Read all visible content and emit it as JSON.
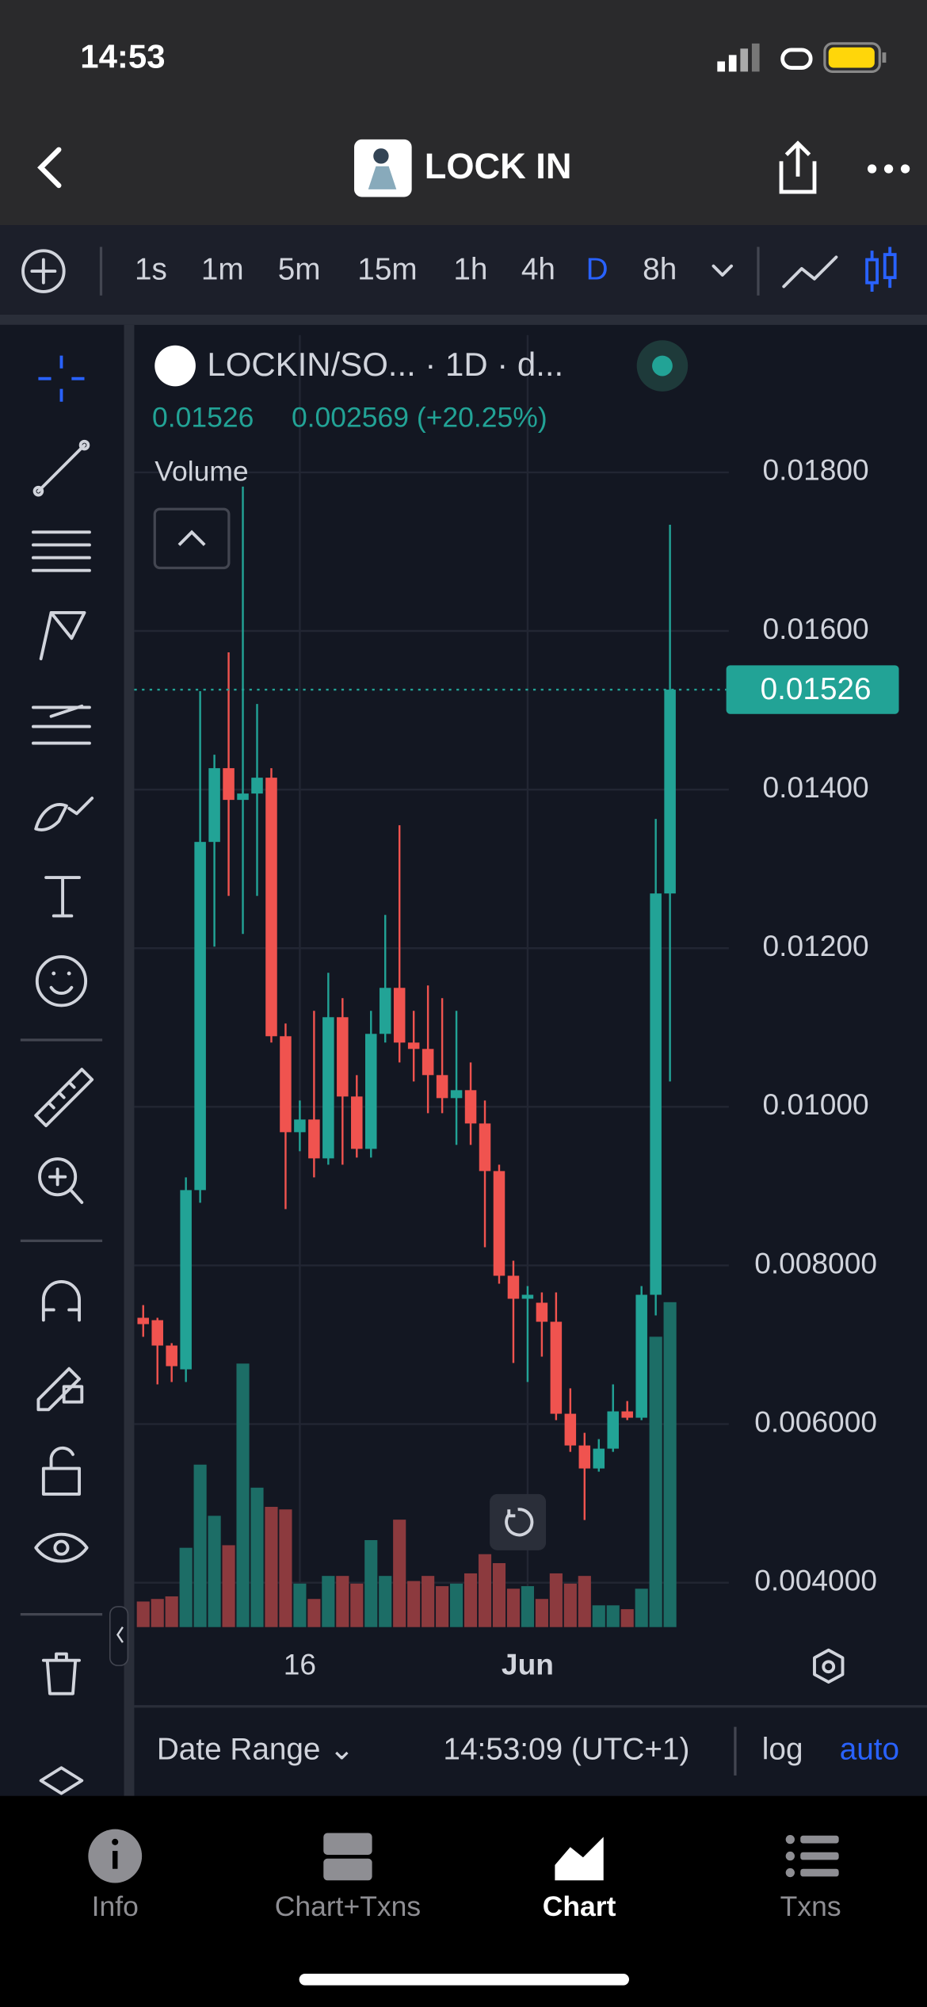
{
  "status_bar": {
    "time": "14:53"
  },
  "header": {
    "title": "LOCK IN"
  },
  "toolbar": {
    "timeframes": [
      "1s",
      "1m",
      "5m",
      "15m",
      "1h",
      "4h",
      "D",
      "8h"
    ],
    "active_timeframe": "D"
  },
  "legend": {
    "symbol": "LOCKIN/SO... · 1D · d...",
    "change": "0.002569 (+20.25%)",
    "volume_label": "Volume"
  },
  "chart_data": {
    "type": "candlestick",
    "categories": [
      null,
      null,
      null,
      null,
      null,
      null,
      null,
      null,
      null,
      null,
      null,
      "16",
      null,
      null,
      null,
      null,
      null,
      null,
      null,
      null,
      null,
      null,
      null,
      null,
      null,
      null,
      null,
      "Jun",
      null,
      null,
      null,
      null,
      null,
      null,
      null,
      null,
      null,
      null
    ],
    "open": [
      0.00734,
      0.00731,
      0.00699,
      0.00669,
      0.00895,
      0.01334,
      0.01427,
      0.01387,
      0.01395,
      0.01415,
      0.01089,
      0.00968,
      0.00984,
      0.00935,
      0.01113,
      0.01013,
      0.00947,
      0.01092,
      0.0115,
      0.01081,
      0.01073,
      0.0104,
      0.01011,
      0.01021,
      0.00979,
      0.00919,
      0.00787,
      0.00758,
      0.00753,
      0.00729,
      0.00613,
      0.00573,
      0.00544,
      0.00569,
      0.00616,
      0.00608,
      0.00763,
      0.01269
    ],
    "high": [
      0.0075,
      0.00734,
      0.00702,
      0.00911,
      0.01524,
      0.01444,
      0.01573,
      0.01782,
      0.01508,
      0.01427,
      0.01105,
      0.01008,
      0.01121,
      0.01169,
      0.01137,
      0.0104,
      0.01121,
      0.01242,
      0.01355,
      0.01121,
      0.01153,
      0.01137,
      0.01121,
      0.01056,
      0.01008,
      0.00927,
      0.00806,
      0.00774,
      0.00766,
      0.00766,
      0.00645,
      0.00589,
      0.00581,
      0.0065,
      0.00629,
      0.00774,
      0.01363,
      0.01734
    ],
    "low": [
      0.0071,
      0.0065,
      0.00653,
      0.00653,
      0.00879,
      0.01202,
      0.01266,
      0.01218,
      0.01266,
      0.01081,
      0.00871,
      0.00944,
      0.00911,
      0.00927,
      0.00927,
      0.00936,
      0.00936,
      0.01081,
      0.01056,
      0.01032,
      0.00992,
      0.00992,
      0.00952,
      0.00952,
      0.00823,
      0.00777,
      0.00677,
      0.00653,
      0.00685,
      0.00605,
      0.00565,
      0.00479,
      0.0054,
      0.00565,
      0.00605,
      0.00605,
      0.00737,
      0.01032
    ],
    "close": [
      0.00726,
      0.00699,
      0.00673,
      0.00895,
      0.01334,
      0.01427,
      0.01387,
      0.01395,
      0.01415,
      0.01089,
      0.00968,
      0.00984,
      0.00935,
      0.01113,
      0.01013,
      0.00947,
      0.01092,
      0.0115,
      0.01081,
      0.01073,
      0.0104,
      0.01011,
      0.01021,
      0.00979,
      0.00919,
      0.00787,
      0.00758,
      0.00763,
      0.00729,
      0.00613,
      0.00573,
      0.00544,
      0.00569,
      0.00616,
      0.00608,
      0.00763,
      0.01269,
      0.01526
    ],
    "volume": [
      20,
      22,
      24,
      62,
      127,
      87,
      64,
      206,
      109,
      94,
      92,
      34,
      22,
      40,
      40,
      34,
      68,
      40,
      84,
      36,
      40,
      32,
      34,
      42,
      57,
      50,
      30,
      32,
      22,
      42,
      34,
      40,
      17,
      17,
      14,
      30,
      227,
      254
    ],
    "ylim": [
      0.00344,
      0.01973
    ],
    "yticks": [
      {
        "value": 0.004,
        "label": "0.004000"
      },
      {
        "value": 0.006,
        "label": "0.006000"
      },
      {
        "value": 0.008,
        "label": "0.008000"
      },
      {
        "value": 0.01,
        "label": "0.01000"
      },
      {
        "value": 0.012,
        "label": "0.01200"
      },
      {
        "value": 0.014,
        "label": "0.01400"
      },
      {
        "value": 0.016,
        "label": "0.01600"
      },
      {
        "value": 0.018,
        "label": "0.01800"
      }
    ],
    "grid": true,
    "up_color": "#22a396",
    "down_color": "#f0534f",
    "up_volume_color": "#1c6d66",
    "down_volume_color": "#8c3a3e"
  },
  "bottom_bar": {
    "date_range": "Date Range ⌄",
    "time": "14:53:09 (UTC+1)",
    "log": "log",
    "auto": "auto"
  },
  "tabs": [
    "Info",
    "Chart+Txns",
    "Chart",
    "Txns"
  ],
  "active_tab": "Chart"
}
